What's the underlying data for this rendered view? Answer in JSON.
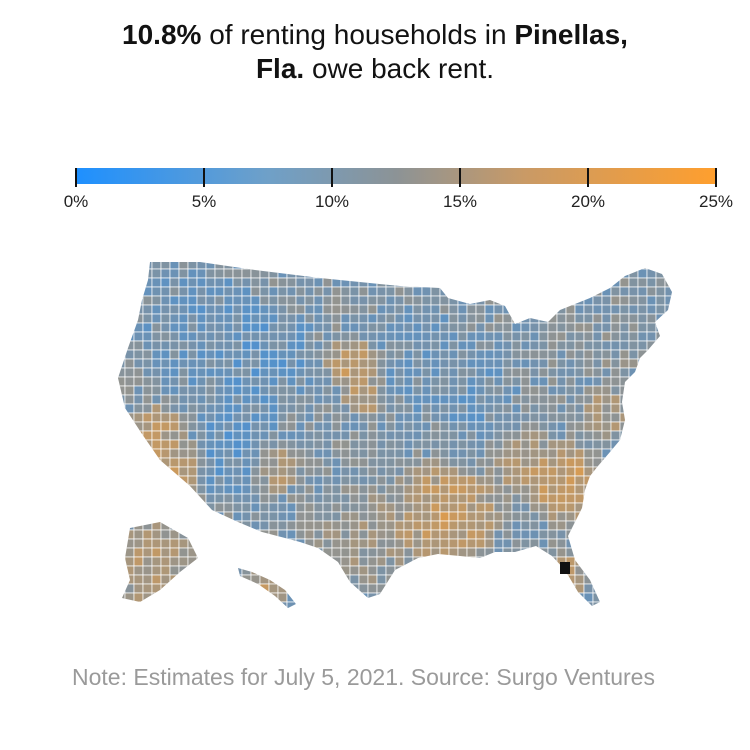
{
  "headline": {
    "pct": "10.8%",
    "mid": " of renting households in ",
    "place1": "Pinellas,",
    "place2": "Fla.",
    "tail": " owe back rent."
  },
  "legend": {
    "min": 0,
    "max": 25,
    "ticks": [
      {
        "value": 0,
        "label": "0%"
      },
      {
        "value": 5,
        "label": "5%"
      },
      {
        "value": 10,
        "label": "10%"
      },
      {
        "value": 15,
        "label": "15%"
      },
      {
        "value": 20,
        "label": "20%"
      },
      {
        "value": 25,
        "label": "25%"
      }
    ],
    "colors": {
      "low": "#1e90ff",
      "mid": "#8c9396",
      "high": "#ff9f2e"
    }
  },
  "map": {
    "highlighted_county": "Pinellas, Fla.",
    "highlighted_value": 10.8,
    "highlight_color": "#111111",
    "border_color": "#ffffff"
  },
  "note": "Note: Estimates for July 5, 2021. Source: Surgo Ventures"
}
